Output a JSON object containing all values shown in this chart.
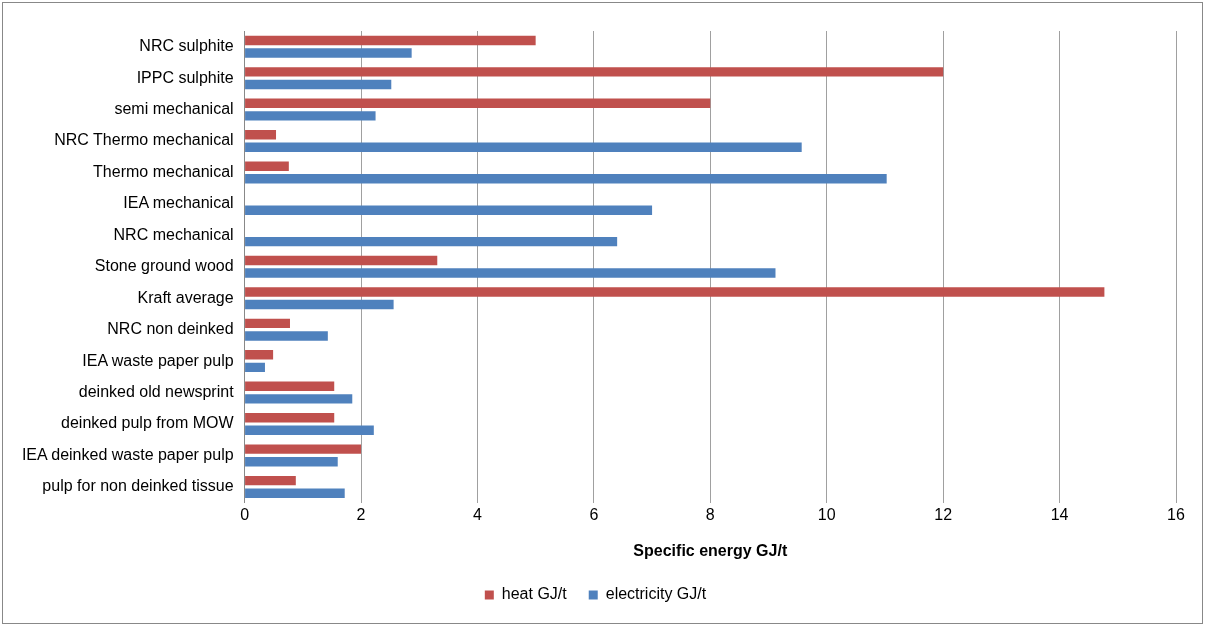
{
  "chart_data": {
    "type": "bar",
    "orientation": "horizontal",
    "xlabel": "Specific energy GJ/t",
    "categories": [
      "NRC sulphite",
      "IPPC sulphite",
      "semi mechanical",
      "NRC Thermo mechanical",
      "Thermo mechanical",
      "IEA mechanical",
      "NRC mechanical",
      "Stone ground wood",
      "Kraft average",
      "NRC non deinked",
      "IEA waste paper pulp",
      "deinked old newsprint",
      "deinked pulp from MOW",
      "IEA deinked waste paper pulp",
      "pulp for non deinked tissue"
    ],
    "series": [
      {
        "name": "heat GJ/t",
        "color": "#c0504d",
        "values": [
          5.0,
          12.0,
          8.0,
          0.54,
          0.76,
          null,
          null,
          3.31,
          14.77,
          0.78,
          0.49,
          1.54,
          1.54,
          2.0,
          0.88
        ]
      },
      {
        "name": "electricity GJ/t",
        "color": "#4f81bd",
        "values": [
          2.87,
          2.52,
          2.25,
          9.57,
          11.03,
          7.0,
          6.4,
          9.12,
          2.56,
          1.43,
          0.35,
          1.85,
          2.22,
          1.6,
          1.72
        ]
      }
    ],
    "xlim": [
      0,
      16
    ],
    "xticks": [
      0,
      2,
      4,
      6,
      8,
      10,
      12,
      14,
      16
    ],
    "grid": "x",
    "legend": "bottom"
  }
}
